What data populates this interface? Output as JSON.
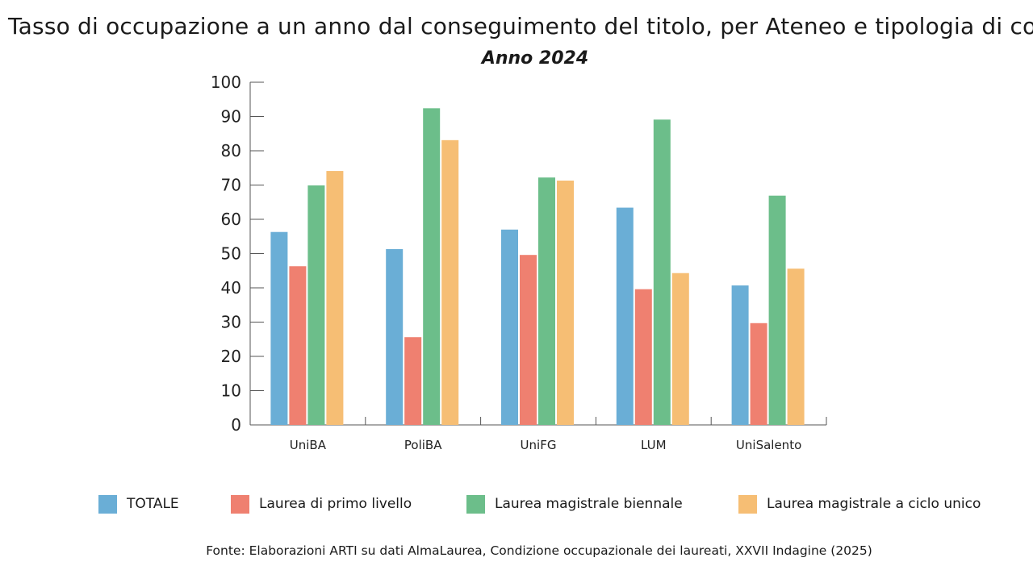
{
  "chart_data": {
    "type": "bar",
    "title": "Tasso di occupazione a un anno dal conseguimento del titolo, per Ateneo e tipologia di cor",
    "subtitle": "Anno 2024",
    "categories": [
      "UniBA",
      "PoliBA",
      "UniFG",
      "LUM",
      "UniSalento"
    ],
    "series": [
      {
        "name": "TOTALE",
        "color": "#6aaed6",
        "values": [
          56.3,
          51.3,
          57.0,
          63.4,
          40.7
        ]
      },
      {
        "name": "Laurea di primo livello",
        "color": "#ef8070",
        "values": [
          46.3,
          25.6,
          49.6,
          39.6,
          29.7
        ]
      },
      {
        "name": "Laurea magistrale biennale",
        "color": "#6cbe8a",
        "values": [
          69.9,
          92.4,
          72.2,
          89.1,
          66.9
        ]
      },
      {
        "name": "Laurea magistrale a ciclo unico",
        "color": "#f6be74",
        "values": [
          74.1,
          83.1,
          71.3,
          44.3,
          45.6
        ]
      }
    ],
    "yticks": [
      "0",
      "10",
      "20",
      "30",
      "40",
      "50",
      "60",
      "70",
      "80",
      "90",
      "100"
    ],
    "ylim": [
      0,
      100
    ],
    "xlabel": "",
    "ylabel": "",
    "grid": false,
    "legend_position": "bottom"
  },
  "source": "Fonte: Elaborazioni ARTI su dati AlmaLaurea, Condizione occupazionale dei laureati, XXVII Indagine (2025)"
}
